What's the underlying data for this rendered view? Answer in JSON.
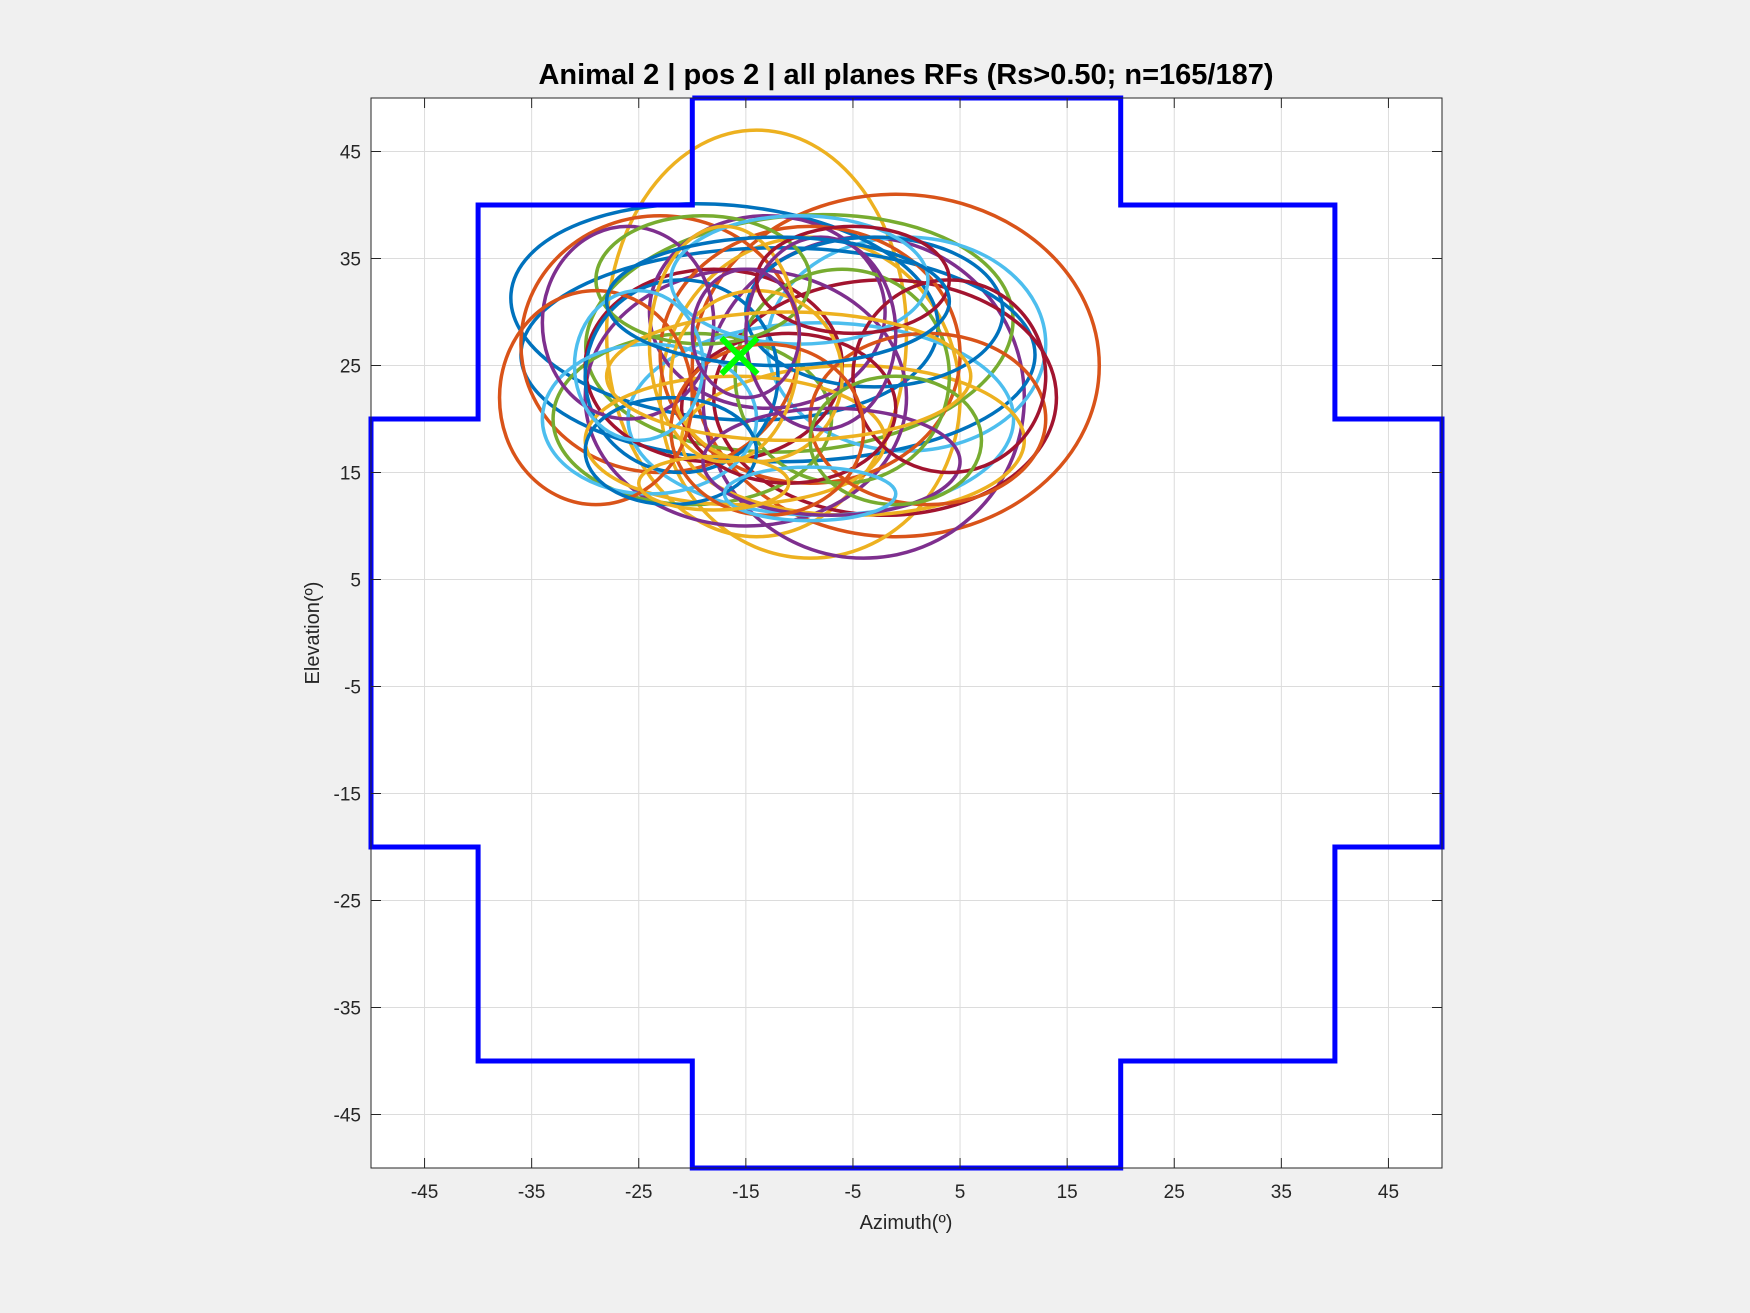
{
  "chart_data": {
    "type": "scatter",
    "title": "Animal 2 | pos 2 | all planes RFs (Rs>0.50; n=165/187)",
    "xlabel": "Azimuth(º)",
    "ylabel": "Elevation(º)",
    "xlim": [
      -50,
      50
    ],
    "ylim": [
      -50,
      50
    ],
    "xticks": [
      -45,
      -35,
      -25,
      -15,
      -5,
      5,
      15,
      25,
      35,
      45
    ],
    "yticks": [
      45,
      35,
      25,
      15,
      5,
      -5,
      -15,
      -25,
      -35,
      -45
    ],
    "grid": true,
    "colors": [
      "#0072BD",
      "#D95319",
      "#EDB120",
      "#7E2F8E",
      "#77AC30",
      "#4DBEEE",
      "#A2142F"
    ],
    "boundary": {
      "name": "screen outline",
      "color": "#0000FF",
      "points": [
        [
          -20,
          50
        ],
        [
          20,
          50
        ],
        [
          20,
          40
        ],
        [
          40,
          40
        ],
        [
          40,
          20
        ],
        [
          50,
          20
        ],
        [
          50,
          -20
        ],
        [
          40,
          -20
        ],
        [
          40,
          -40
        ],
        [
          20,
          -40
        ],
        [
          20,
          -50
        ],
        [
          -20,
          -50
        ],
        [
          -20,
          -40
        ],
        [
          -40,
          -40
        ],
        [
          -40,
          -20
        ],
        [
          -50,
          -20
        ],
        [
          -50,
          20
        ],
        [
          -40,
          20
        ],
        [
          -40,
          40
        ],
        [
          -20,
          40
        ],
        [
          -20,
          50
        ]
      ]
    },
    "center_marker": {
      "x": -15.6,
      "y": 25.9,
      "color": "#00FF00",
      "symbol": "x"
    },
    "ellipses": [
      {
        "cx": -14,
        "cy": 28,
        "rx": 14,
        "ry": 19,
        "rot": 0,
        "c": 2
      },
      {
        "cx": -1,
        "cy": 25,
        "rx": 19,
        "ry": 16,
        "rot": 0,
        "c": 1
      },
      {
        "cx": -9,
        "cy": 22,
        "rx": 14,
        "ry": 15,
        "rot": 0,
        "c": 2
      },
      {
        "cx": -4,
        "cy": 22,
        "rx": 15,
        "ry": 15,
        "rot": 0,
        "c": 3
      },
      {
        "cx": -10,
        "cy": 28,
        "rx": 20,
        "ry": 11,
        "rot": -5,
        "c": 4
      },
      {
        "cx": 0,
        "cy": 27,
        "rx": 13,
        "ry": 10,
        "rot": 0,
        "c": 5
      },
      {
        "cx": -17,
        "cy": 30,
        "rx": 20,
        "ry": 10,
        "rot": 5,
        "c": 0
      },
      {
        "cx": -12,
        "cy": 26,
        "rx": 24,
        "ry": 10,
        "rot": 0,
        "c": 0
      },
      {
        "cx": -2,
        "cy": 22,
        "rx": 16,
        "ry": 11,
        "rot": 0,
        "c": 6
      },
      {
        "cx": -23,
        "cy": 27,
        "rx": 13,
        "ry": 12,
        "rot": 0,
        "c": 1
      },
      {
        "cx": -15,
        "cy": 22,
        "rx": 15,
        "ry": 12,
        "rot": 0,
        "c": 3
      },
      {
        "cx": -20,
        "cy": 20,
        "rx": 13,
        "ry": 8,
        "rot": 0,
        "c": 4
      },
      {
        "cx": -8,
        "cy": 20,
        "rx": 18,
        "ry": 9,
        "rot": 0,
        "c": 5
      },
      {
        "cx": -5,
        "cy": 18,
        "rx": 16,
        "ry": 7,
        "rot": 0,
        "c": 2
      },
      {
        "cx": -18,
        "cy": 25,
        "rx": 12,
        "ry": 9,
        "rot": 0,
        "c": 6
      },
      {
        "cx": -13,
        "cy": 30,
        "rx": 11,
        "ry": 9,
        "rot": 0,
        "c": 3
      },
      {
        "cx": -9,
        "cy": 26,
        "rx": 14,
        "ry": 12,
        "rot": 0,
        "c": 1
      },
      {
        "cx": -21,
        "cy": 24,
        "rx": 9,
        "ry": 9,
        "rot": 0,
        "c": 0
      },
      {
        "cx": -6,
        "cy": 24,
        "rx": 10,
        "ry": 10,
        "rot": 0,
        "c": 4
      },
      {
        "cx": -16,
        "cy": 18,
        "rx": 14,
        "ry": 6,
        "rot": 0,
        "c": 2
      },
      {
        "cx": -24,
        "cy": 20,
        "rx": 10,
        "ry": 7,
        "rot": 0,
        "c": 5
      },
      {
        "cx": 2,
        "cy": 20,
        "rx": 11,
        "ry": 8,
        "rot": 0,
        "c": 1
      },
      {
        "cx": -11,
        "cy": 21,
        "rx": 10,
        "ry": 7,
        "rot": 0,
        "c": 6
      },
      {
        "cx": -26,
        "cy": 29,
        "rx": 8,
        "ry": 9,
        "rot": 0,
        "c": 3
      },
      {
        "cx": -3,
        "cy": 30,
        "rx": 12,
        "ry": 7,
        "rot": 0,
        "c": 0
      },
      {
        "cx": -19,
        "cy": 33,
        "rx": 10,
        "ry": 6,
        "rot": 0,
        "c": 4
      },
      {
        "cx": -14,
        "cy": 24,
        "rx": 8,
        "ry": 8,
        "rot": 0,
        "c": 2
      },
      {
        "cx": -7,
        "cy": 16,
        "rx": 12,
        "ry": 5,
        "rot": 0,
        "c": 3
      },
      {
        "cx": 4,
        "cy": 24,
        "rx": 9,
        "ry": 9,
        "rot": 0,
        "c": 6
      },
      {
        "cx": -29,
        "cy": 22,
        "rx": 9,
        "ry": 10,
        "rot": 0,
        "c": 1
      },
      {
        "cx": -10,
        "cy": 33,
        "rx": 12,
        "ry": 6,
        "rot": 0,
        "c": 5
      },
      {
        "cx": -17,
        "cy": 27,
        "rx": 7,
        "ry": 11,
        "rot": 0,
        "c": 2
      },
      {
        "cx": -8,
        "cy": 28,
        "rx": 7,
        "ry": 9,
        "rot": 0,
        "c": 3
      },
      {
        "cx": -22,
        "cy": 17,
        "rx": 8,
        "ry": 5,
        "rot": 0,
        "c": 0
      },
      {
        "cx": -1,
        "cy": 18,
        "rx": 8,
        "ry": 6,
        "rot": 0,
        "c": 4
      },
      {
        "cx": -13,
        "cy": 19,
        "rx": 9,
        "ry": 8,
        "rot": 0,
        "c": 1
      },
      {
        "cx": -5,
        "cy": 33,
        "rx": 9,
        "ry": 5,
        "rot": 0,
        "c": 6
      },
      {
        "cx": -25,
        "cy": 25,
        "rx": 6,
        "ry": 7,
        "rot": 0,
        "c": 5
      },
      {
        "cx": -11,
        "cy": 24,
        "rx": 17,
        "ry": 6,
        "rot": 0,
        "c": 2
      },
      {
        "cx": -15,
        "cy": 28,
        "rx": 5,
        "ry": 6,
        "rot": 0,
        "c": 3
      },
      {
        "cx": -12,
        "cy": 31,
        "rx": 16,
        "ry": 6,
        "rot": 0,
        "c": 0
      },
      {
        "cx": -9,
        "cy": 13,
        "rx": 8,
        "ry": 2.5,
        "rot": 0,
        "c": 5
      },
      {
        "cx": -18,
        "cy": 14,
        "rx": 7,
        "ry": 2.5,
        "rot": 0,
        "c": 2
      }
    ]
  }
}
